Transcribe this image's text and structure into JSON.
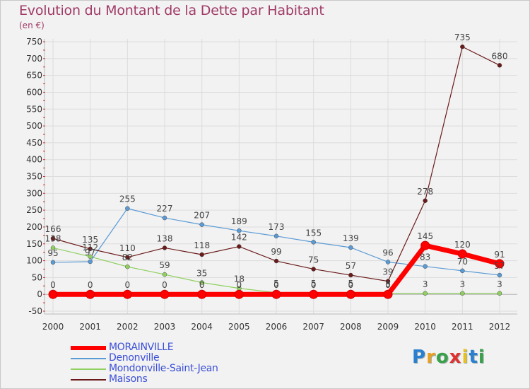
{
  "header": {
    "title": "Evolution du Montant de la Dette par Habitant",
    "unit": "(en €)"
  },
  "logo": {
    "text": "Proxiti",
    "letter_colors": [
      "#2a7fd0",
      "#e8a020",
      "#3aa04a",
      "#e03030",
      "#e8c020",
      "#2a7fd0",
      "#3aa04a"
    ]
  },
  "chart_data": {
    "type": "line",
    "title": "Evolution du Montant de la Dette par Habitant",
    "ylabel": "(en €)",
    "xlabel": "",
    "ylim": [
      -50,
      750
    ],
    "yticks": [
      -50,
      0,
      50,
      100,
      150,
      200,
      250,
      300,
      350,
      400,
      450,
      500,
      550,
      600,
      650,
      700,
      750
    ],
    "x": [
      "2000",
      "2001",
      "2002",
      "2003",
      "2004",
      "2005",
      "2006",
      "2007",
      "2008",
      "2009",
      "2010",
      "2011",
      "2012"
    ],
    "grid": true,
    "legend_position": "bottom-left",
    "series": [
      {
        "name": "MORAINVILLE",
        "color": "#ff0000",
        "values": [
          0,
          0,
          0,
          0,
          0,
          0,
          0,
          0,
          0,
          0,
          145,
          120,
          91
        ],
        "labels": [
          "0",
          "0",
          "0",
          "0",
          "0",
          "0",
          "0",
          "0",
          "0",
          "0",
          "145",
          "120",
          "91"
        ]
      },
      {
        "name": "Denonville",
        "color": "#5b9bd5",
        "values": [
          95,
          97,
          255,
          227,
          207,
          189,
          173,
          155,
          139,
          96,
          83,
          70,
          57
        ],
        "labels": [
          "95",
          "97",
          "255",
          "227",
          "207",
          "189",
          "173",
          "155",
          "139",
          "96",
          "83",
          "70",
          "57"
        ]
      },
      {
        "name": "Mondonville-Saint-Jean",
        "color": "#90d060",
        "values": [
          138,
          112,
          82,
          59,
          35,
          18,
          5,
          5,
          5,
          3,
          3,
          3,
          3
        ],
        "labels": [
          "138",
          "112",
          "82",
          "59",
          "35",
          "18",
          "5",
          "5",
          "5",
          "3",
          "3",
          "3",
          "3"
        ]
      },
      {
        "name": "Maisons",
        "color": "#6b1a1a",
        "values": [
          166,
          135,
          110,
          138,
          118,
          142,
          99,
          75,
          57,
          39,
          278,
          735,
          680
        ],
        "labels": [
          "166",
          "135",
          "110",
          "138",
          "118",
          "142",
          "99",
          "75",
          "57",
          "39",
          "278",
          "735",
          "680"
        ]
      }
    ]
  }
}
